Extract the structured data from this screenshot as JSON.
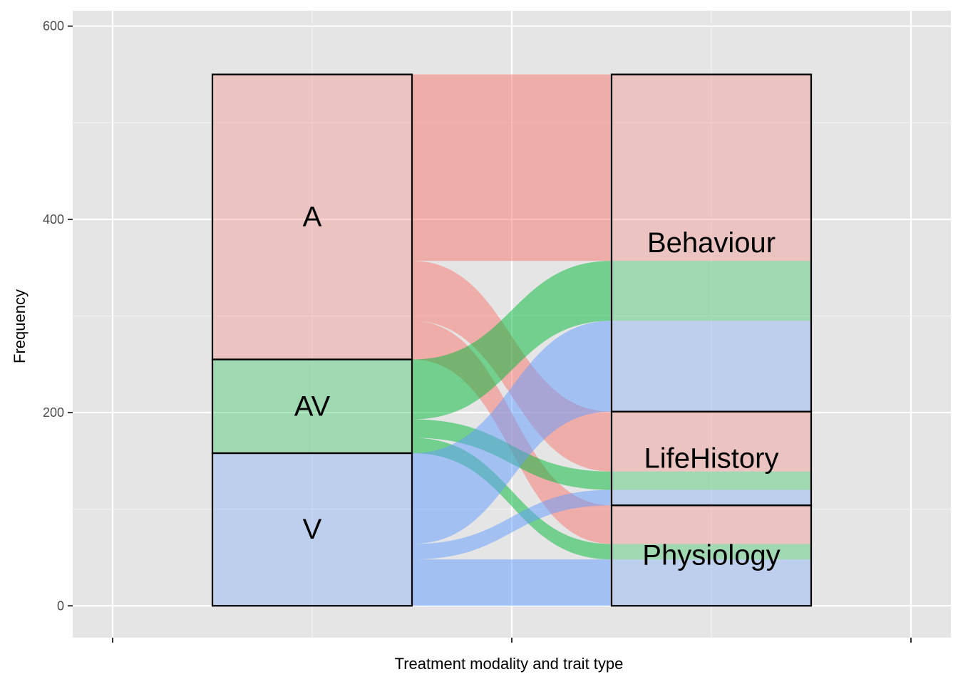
{
  "chart_data": {
    "type": "alluvial",
    "xlabel": "Treatment modality and trait type",
    "ylabel": "Frequency",
    "ylim": [
      -33,
      616
    ],
    "yticks": [
      0,
      200,
      400,
      600
    ],
    "grid": true,
    "legend": "none",
    "axes": [
      {
        "name": "Treatment modality",
        "strata": [
          "A",
          "AV",
          "V"
        ]
      },
      {
        "name": "Trait type",
        "strata": [
          "Behaviour",
          "LifeHistory",
          "Physiology"
        ]
      }
    ],
    "colors": {
      "A": "#F8766D",
      "AV": "#00BA38",
      "V": "#619CFF"
    },
    "flows": [
      {
        "from": "A",
        "to": "Behaviour",
        "value": 193
      },
      {
        "from": "A",
        "to": "LifeHistory",
        "value": 62
      },
      {
        "from": "A",
        "to": "Physiology",
        "value": 40
      },
      {
        "from": "AV",
        "to": "Behaviour",
        "value": 62
      },
      {
        "from": "AV",
        "to": "LifeHistory",
        "value": 19
      },
      {
        "from": "AV",
        "to": "Physiology",
        "value": 16
      },
      {
        "from": "V",
        "to": "Behaviour",
        "value": 94
      },
      {
        "from": "V",
        "to": "LifeHistory",
        "value": 16
      },
      {
        "from": "V",
        "to": "Physiology",
        "value": 48
      }
    ]
  }
}
